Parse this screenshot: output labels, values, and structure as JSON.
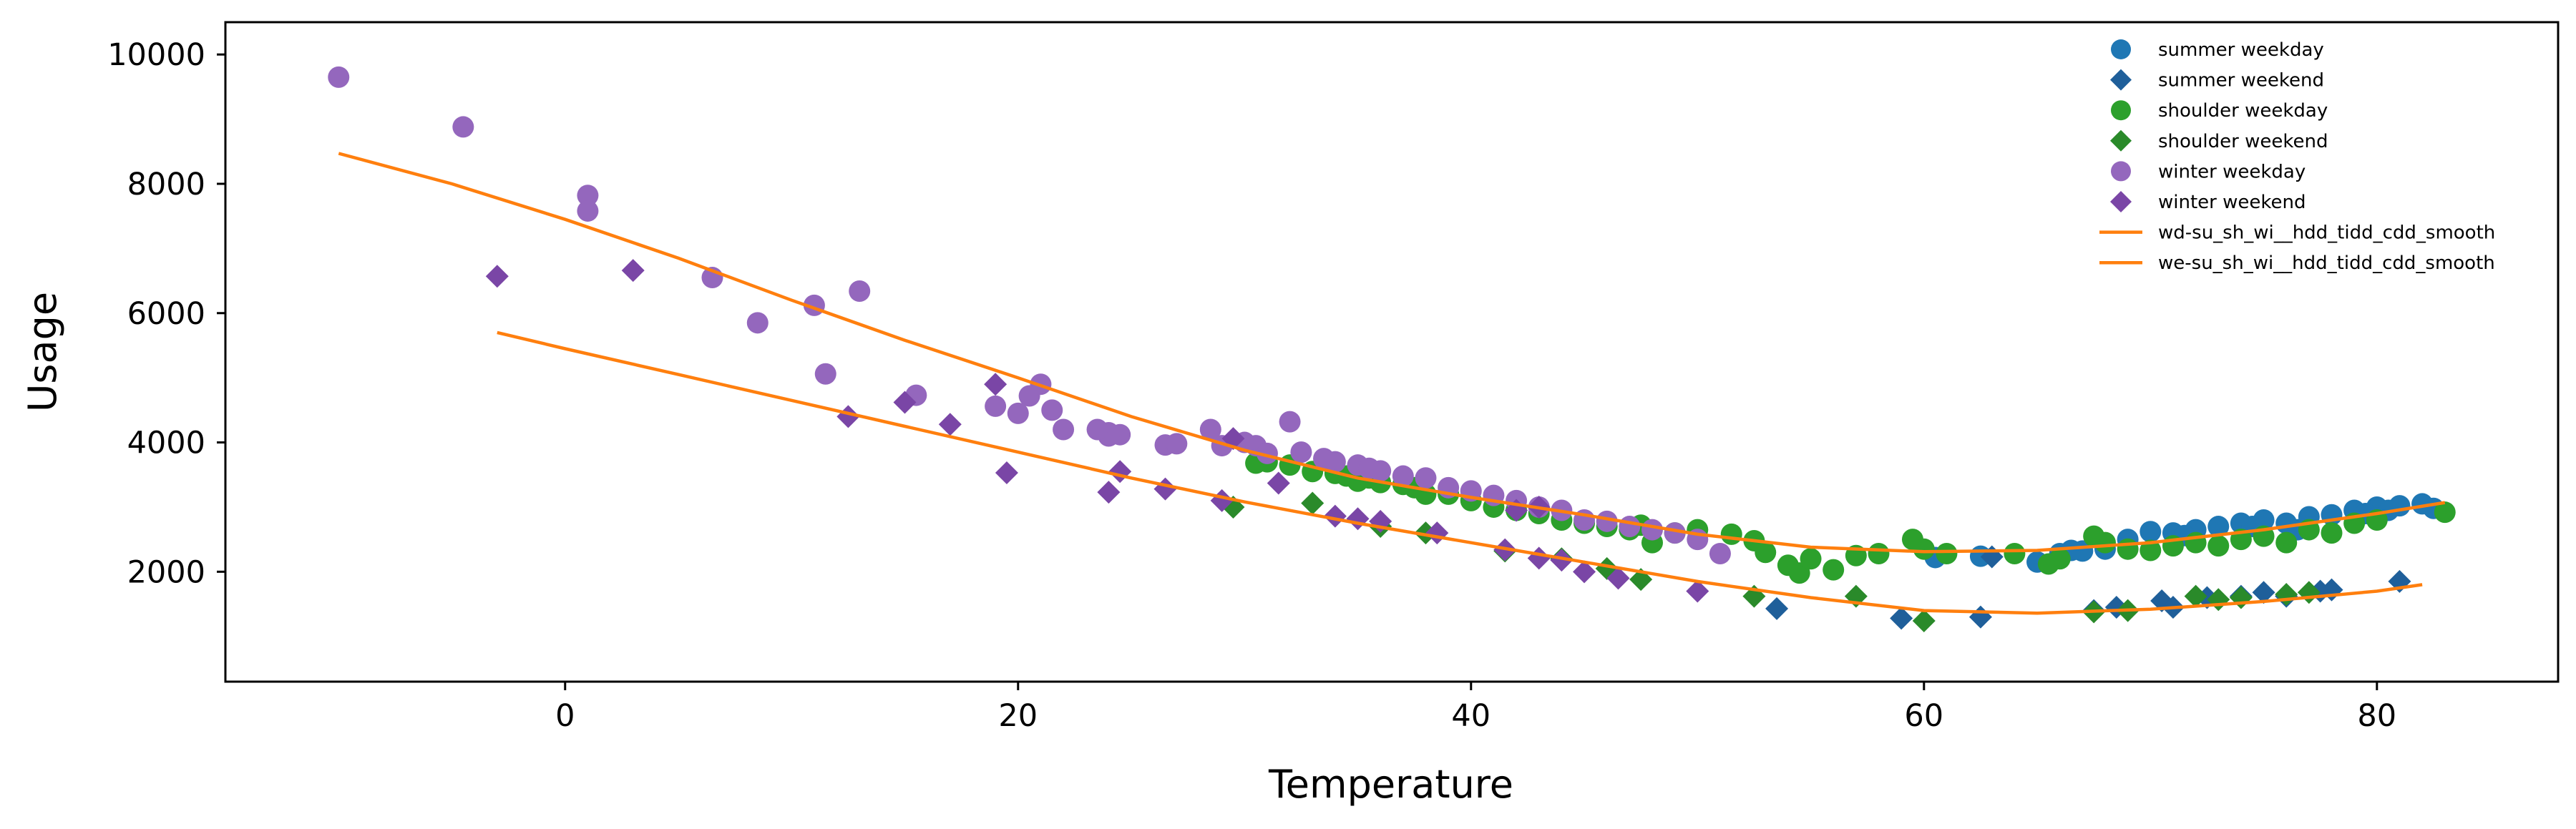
{
  "chart_data": {
    "type": "scatter",
    "title": "",
    "xlabel": "Temperature",
    "ylabel": "Usage",
    "xlim": [
      -15,
      88
    ],
    "ylim": [
      300,
      10500
    ],
    "xticks": [
      0,
      20,
      40,
      60,
      80
    ],
    "yticks": [
      2000,
      4000,
      6000,
      8000,
      10000
    ],
    "xtick_labels": [
      "0",
      "20",
      "40",
      "60",
      "80"
    ],
    "ytick_labels": [
      "2000",
      "4000",
      "6000",
      "8000",
      "10000"
    ],
    "grid": false,
    "legend_position": "top-right",
    "series": [
      {
        "name": "summer weekday",
        "marker": "circle",
        "color": "#1f77b4",
        "points": [
          [
            60.5,
            2220
          ],
          [
            62.5,
            2240
          ],
          [
            65,
            2150
          ],
          [
            66,
            2280
          ],
          [
            67,
            2320
          ],
          [
            68,
            2350
          ],
          [
            69,
            2500
          ],
          [
            70,
            2620
          ],
          [
            71,
            2600
          ],
          [
            72,
            2650
          ],
          [
            73,
            2700
          ],
          [
            74,
            2750
          ],
          [
            75,
            2800
          ],
          [
            76,
            2750
          ],
          [
            77,
            2850
          ],
          [
            78,
            2880
          ],
          [
            79,
            2950
          ],
          [
            80,
            3000
          ],
          [
            81,
            3020
          ],
          [
            82,
            3050
          ],
          [
            76.5,
            2650
          ],
          [
            79.5,
            2900
          ],
          [
            66.5,
            2330
          ],
          [
            71.5,
            2560
          ],
          [
            74.5,
            2700
          ],
          [
            80.5,
            2950
          ],
          [
            82.5,
            2980
          ]
        ]
      },
      {
        "name": "summer weekend",
        "marker": "diamond",
        "color": "#1f5f9a",
        "points": [
          [
            53.5,
            1430
          ],
          [
            59,
            1280
          ],
          [
            62.5,
            1300
          ],
          [
            67.5,
            1400
          ],
          [
            68.5,
            1450
          ],
          [
            70.5,
            1550
          ],
          [
            71,
            1450
          ],
          [
            72.5,
            1600
          ],
          [
            74,
            1620
          ],
          [
            75,
            1680
          ],
          [
            76,
            1620
          ],
          [
            77.5,
            1700
          ],
          [
            78,
            1720
          ],
          [
            81,
            1850
          ],
          [
            63,
            2230
          ]
        ]
      },
      {
        "name": "shoulder weekday",
        "marker": "circle",
        "color": "#2ca02c",
        "points": [
          [
            30.5,
            3680
          ],
          [
            31,
            3700
          ],
          [
            32,
            3650
          ],
          [
            33,
            3550
          ],
          [
            34,
            3520
          ],
          [
            34.5,
            3480
          ],
          [
            35,
            3400
          ],
          [
            35.5,
            3450
          ],
          [
            36,
            3380
          ],
          [
            37,
            3350
          ],
          [
            37.5,
            3300
          ],
          [
            38,
            3200
          ],
          [
            39,
            3200
          ],
          [
            40,
            3100
          ],
          [
            41,
            3000
          ],
          [
            42,
            2950
          ],
          [
            43,
            2900
          ],
          [
            44,
            2800
          ],
          [
            45,
            2750
          ],
          [
            46,
            2700
          ],
          [
            47,
            2650
          ],
          [
            47.5,
            2720
          ],
          [
            48,
            2450
          ],
          [
            49,
            2600
          ],
          [
            50,
            2650
          ],
          [
            51.5,
            2580
          ],
          [
            52.5,
            2480
          ],
          [
            53,
            2300
          ],
          [
            54,
            2100
          ],
          [
            54.5,
            1980
          ],
          [
            56,
            2030
          ],
          [
            57,
            2250
          ],
          [
            58,
            2280
          ],
          [
            59.5,
            2500
          ],
          [
            60,
            2350
          ],
          [
            64,
            2280
          ],
          [
            65.5,
            2120
          ],
          [
            66,
            2200
          ],
          [
            67.5,
            2550
          ],
          [
            68,
            2450
          ],
          [
            69,
            2350
          ],
          [
            70,
            2330
          ],
          [
            71,
            2400
          ],
          [
            72,
            2450
          ],
          [
            73,
            2400
          ],
          [
            74,
            2500
          ],
          [
            75,
            2550
          ],
          [
            76,
            2450
          ],
          [
            77,
            2650
          ],
          [
            78,
            2600
          ],
          [
            79,
            2750
          ],
          [
            80,
            2800
          ],
          [
            83,
            2920
          ],
          [
            61,
            2280
          ],
          [
            55,
            2200
          ]
        ]
      },
      {
        "name": "shoulder weekend",
        "marker": "diamond",
        "color": "#2a8a2a",
        "points": [
          [
            29.5,
            3000
          ],
          [
            33,
            3060
          ],
          [
            36,
            2700
          ],
          [
            38,
            2600
          ],
          [
            41.5,
            2320
          ],
          [
            44,
            2200
          ],
          [
            46,
            2050
          ],
          [
            47.5,
            1880
          ],
          [
            52.5,
            1620
          ],
          [
            57,
            1620
          ],
          [
            60,
            1240
          ],
          [
            67.5,
            1380
          ],
          [
            69,
            1400
          ],
          [
            72,
            1620
          ],
          [
            73,
            1570
          ],
          [
            74,
            1600
          ],
          [
            76,
            1650
          ],
          [
            77,
            1680
          ]
        ]
      },
      {
        "name": "winter weekday",
        "marker": "circle",
        "color": "#9467bd",
        "points": [
          [
            -10,
            9650
          ],
          [
            -4.5,
            8880
          ],
          [
            1,
            7820
          ],
          [
            1,
            7580
          ],
          [
            6.5,
            6550
          ],
          [
            8.5,
            5850
          ],
          [
            11,
            6120
          ],
          [
            11.5,
            5060
          ],
          [
            13,
            6340
          ],
          [
            15.5,
            4730
          ],
          [
            19,
            4560
          ],
          [
            20,
            4450
          ],
          [
            20.5,
            4720
          ],
          [
            21,
            4900
          ],
          [
            22,
            4200
          ],
          [
            24,
            4150
          ],
          [
            24.5,
            4120
          ],
          [
            26.5,
            3960
          ],
          [
            27,
            3980
          ],
          [
            28.5,
            4200
          ],
          [
            29,
            3950
          ],
          [
            30,
            4000
          ],
          [
            30.5,
            3950
          ],
          [
            31,
            3830
          ],
          [
            32,
            4320
          ],
          [
            32.5,
            3850
          ],
          [
            33.5,
            3750
          ],
          [
            34,
            3700
          ],
          [
            35,
            3650
          ],
          [
            35.5,
            3600
          ],
          [
            36,
            3560
          ],
          [
            37,
            3480
          ],
          [
            38,
            3450
          ],
          [
            39,
            3300
          ],
          [
            40,
            3250
          ],
          [
            41,
            3180
          ],
          [
            42,
            3100
          ],
          [
            43,
            3000
          ],
          [
            44,
            2950
          ],
          [
            45,
            2800
          ],
          [
            46,
            2780
          ],
          [
            47,
            2700
          ],
          [
            48,
            2650
          ],
          [
            49,
            2600
          ],
          [
            50,
            2500
          ],
          [
            51,
            2280
          ],
          [
            24,
            4100
          ],
          [
            23.5,
            4200
          ],
          [
            21.5,
            4500
          ]
        ]
      },
      {
        "name": "winter weekend",
        "marker": "diamond",
        "color": "#7a46a6",
        "points": [
          [
            -3,
            6570
          ],
          [
            3,
            6660
          ],
          [
            12.5,
            4400
          ],
          [
            15,
            4620
          ],
          [
            17,
            4280
          ],
          [
            19.5,
            3530
          ],
          [
            19,
            4900
          ],
          [
            24,
            3230
          ],
          [
            24.5,
            3550
          ],
          [
            26.5,
            3280
          ],
          [
            29,
            3100
          ],
          [
            29.5,
            4060
          ],
          [
            31.5,
            3370
          ],
          [
            34,
            2860
          ],
          [
            35,
            2820
          ],
          [
            36,
            2780
          ],
          [
            38.5,
            2600
          ],
          [
            41.5,
            2340
          ],
          [
            43,
            2210
          ],
          [
            44,
            2180
          ],
          [
            45,
            2000
          ],
          [
            46.5,
            1900
          ],
          [
            50,
            1700
          ],
          [
            42,
            2950
          ],
          [
            43,
            3000
          ]
        ]
      },
      {
        "name": "wd-su_sh_wi__hdd_tidd_cdd_smooth",
        "type": "line",
        "color": "#ff7f0e",
        "points": [
          [
            -10,
            8470
          ],
          [
            -5,
            8000
          ],
          [
            0,
            7450
          ],
          [
            5,
            6850
          ],
          [
            10,
            6200
          ],
          [
            15,
            5580
          ],
          [
            20,
            5000
          ],
          [
            25,
            4400
          ],
          [
            30,
            3880
          ],
          [
            35,
            3450
          ],
          [
            40,
            3150
          ],
          [
            45,
            2880
          ],
          [
            50,
            2580
          ],
          [
            55,
            2380
          ],
          [
            60,
            2310
          ],
          [
            65,
            2330
          ],
          [
            70,
            2450
          ],
          [
            75,
            2650
          ],
          [
            80,
            2900
          ],
          [
            83,
            3070
          ]
        ]
      },
      {
        "name": "we-su_sh_wi__hdd_tidd_cdd_smooth",
        "type": "line",
        "color": "#ff7f0e",
        "points": [
          [
            -3,
            5700
          ],
          [
            0,
            5450
          ],
          [
            5,
            5050
          ],
          [
            10,
            4650
          ],
          [
            15,
            4250
          ],
          [
            20,
            3850
          ],
          [
            25,
            3450
          ],
          [
            30,
            3080
          ],
          [
            35,
            2750
          ],
          [
            40,
            2450
          ],
          [
            45,
            2150
          ],
          [
            50,
            1850
          ],
          [
            55,
            1600
          ],
          [
            60,
            1400
          ],
          [
            65,
            1360
          ],
          [
            70,
            1420
          ],
          [
            75,
            1540
          ],
          [
            80,
            1700
          ],
          [
            82,
            1800
          ]
        ]
      }
    ]
  }
}
